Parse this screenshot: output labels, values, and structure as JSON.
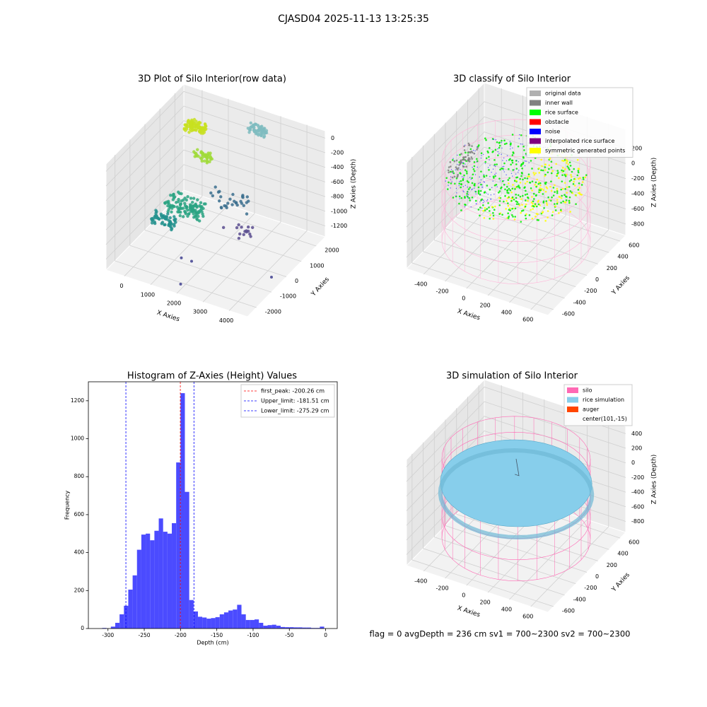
{
  "title": "CJASD04 2025-11-13 13:25:35",
  "footer": "flag = 0     avgDepth = 236 cm  sv1 = 700~2300  sv2 = 700~2300",
  "chart_data": [
    {
      "type": "scatter3d",
      "title": "3D Plot of Silo Interior(row data)",
      "x_label": "X Axies",
      "y_label": "Y Axies",
      "z_label": "Z Axies (Depth)",
      "xlim": [
        -700,
        4700
      ],
      "ylim": [
        -2600,
        2600
      ],
      "zlim": [
        -1350,
        100
      ],
      "xticks": [
        0,
        1000,
        2000,
        3000,
        4000
      ],
      "yticks": [
        -2000,
        -1000,
        0,
        1000,
        2000
      ],
      "zticks": [
        0,
        -200,
        -400,
        -600,
        -800,
        -1000,
        -1200
      ]
    },
    {
      "type": "scatter3d",
      "title": "3D classify of Silo Interior",
      "x_label": "X Axies",
      "y_label": "Y Axies",
      "z_label": "Z Axies (Depth)",
      "xlim": [
        -560,
        760
      ],
      "ylim": [
        -700,
        700
      ],
      "zlim": [
        -950,
        450
      ],
      "xticks": [
        -400,
        -200,
        0,
        200,
        400,
        600
      ],
      "yticks": [
        -600,
        -400,
        -200,
        0,
        200,
        400,
        600
      ],
      "zticks": [
        -800,
        -600,
        -400,
        -200,
        0,
        200
      ],
      "series": [
        {
          "name": "original data",
          "color": "#b0b0b0"
        },
        {
          "name": "inner wall",
          "color": "#808080"
        },
        {
          "name": "rice surface",
          "color": "#00ff00"
        },
        {
          "name": "obstacle",
          "color": "#ff0000"
        },
        {
          "name": "noise",
          "color": "#0000ff"
        },
        {
          "name": "interpolated rice surface",
          "color": "#800080"
        },
        {
          "name": "symmetric generated points",
          "color": "#ffff00"
        }
      ]
    },
    {
      "type": "histogram",
      "title": "Histogram of Z-Axies (Height) Values",
      "x_label": "Depth (cm)",
      "y_label": "Frequency",
      "color": "#4b4bff",
      "xlim": [
        -327,
        16
      ],
      "ylim": [
        0,
        1300
      ],
      "xticks": [
        -300,
        -250,
        -200,
        -150,
        -100,
        -50,
        0
      ],
      "yticks": [
        0,
        200,
        400,
        600,
        800,
        1000,
        1200
      ],
      "bins": [
        -314,
        -308,
        -302,
        -296,
        -290,
        -284,
        -278,
        -272,
        -266,
        -260,
        -254,
        -248,
        -242,
        -236,
        -230,
        -224,
        -218,
        -212,
        -206,
        -200,
        -194,
        -188,
        -182,
        -176,
        -170,
        -164,
        -158,
        -152,
        -146,
        -140,
        -134,
        -128,
        -122,
        -116,
        -110,
        -104,
        -98,
        -92,
        -86,
        -80,
        -74,
        -68,
        -62,
        -56,
        -50,
        -44,
        -38,
        -32,
        -26,
        -20,
        -14,
        -8,
        -2
      ],
      "values": [
        0,
        3,
        0,
        10,
        30,
        75,
        120,
        205,
        280,
        415,
        495,
        500,
        465,
        515,
        580,
        510,
        500,
        555,
        875,
        1240,
        720,
        150,
        90,
        62,
        58,
        52,
        55,
        60,
        75,
        85,
        95,
        100,
        125,
        75,
        45,
        45,
        48,
        30,
        15,
        18,
        20,
        15,
        8,
        7,
        7,
        6,
        6,
        5,
        5,
        3,
        3,
        10
      ],
      "vlines": [
        {
          "label": "first_peak: -200.26 cm",
          "value": -200.26,
          "color": "#ff0000"
        },
        {
          "label": "Upper_limit: -181.51 cm",
          "value": -181.51,
          "color": "#0000ff"
        },
        {
          "label": "Lower_limit: -275.29 cm",
          "value": -275.29,
          "color": "#0000ff"
        }
      ]
    },
    {
      "type": "scatter3d",
      "title": "3D simulation of Silo Interior",
      "x_label": "X Axies",
      "y_label": "Y Axies",
      "z_label": "Z Axies (Depth)",
      "xlim": [
        -560,
        760
      ],
      "ylim": [
        -700,
        700
      ],
      "zlim": [
        -950,
        500
      ],
      "xticks": [
        -400,
        -200,
        0,
        200,
        400,
        600
      ],
      "yticks": [
        -600,
        -400,
        -200,
        0,
        200,
        400,
        600
      ],
      "zticks": [
        -800,
        -600,
        -400,
        -200,
        0,
        200,
        400
      ],
      "series": [
        {
          "name": "silo",
          "color": "#ff69b4"
        },
        {
          "name": "rice simulation",
          "color": "#87ceeb"
        },
        {
          "name": "auger",
          "color": "#ff4500"
        },
        {
          "name": "center(101,-15)"
        }
      ]
    }
  ]
}
